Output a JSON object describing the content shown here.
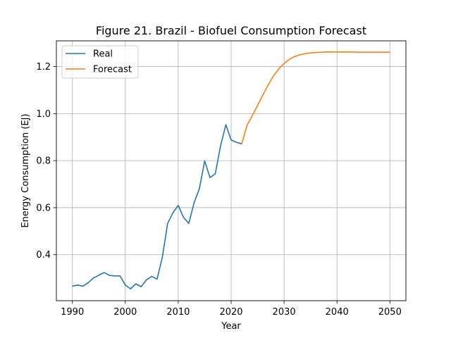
{
  "chart_data": {
    "type": "line",
    "title": "Figure 21. Brazil - Biofuel Consumption Forecast",
    "xlabel": "Year",
    "ylabel": "Energy Consumption (EJ)",
    "xlim": [
      1986.98,
      2053.02
    ],
    "ylim": [
      0.2045,
      1.3095
    ],
    "xticks": [
      1990,
      2000,
      2010,
      2020,
      2030,
      2040,
      2050
    ],
    "yticks": [
      0.4,
      0.6,
      0.8,
      1.0,
      1.2
    ],
    "ytick_labels": [
      "0.4",
      "0.6",
      "0.8",
      "1.0",
      "1.2"
    ],
    "grid": true,
    "legend_position": "upper-left",
    "series": [
      {
        "name": "Real",
        "color": "#1f77b4",
        "x": [
          1990,
          1991,
          1992,
          1993,
          1994,
          1995,
          1996,
          1997,
          1998,
          1999,
          2000,
          2001,
          2002,
          2003,
          2004,
          2005,
          2006,
          2007,
          2008,
          2009,
          2010,
          2011,
          2012,
          2013,
          2014,
          2015,
          2016,
          2017,
          2018,
          2019,
          2020,
          2021,
          2022
        ],
        "values": [
          0.266,
          0.271,
          0.266,
          0.281,
          0.301,
          0.313,
          0.324,
          0.312,
          0.31,
          0.31,
          0.271,
          0.255,
          0.276,
          0.264,
          0.293,
          0.308,
          0.296,
          0.389,
          0.533,
          0.578,
          0.61,
          0.559,
          0.533,
          0.621,
          0.681,
          0.799,
          0.728,
          0.744,
          0.863,
          0.953,
          0.888,
          0.878,
          0.871
        ]
      },
      {
        "name": "Forecast",
        "color": "#ff7f0e",
        "x": [
          2022,
          2023,
          2024,
          2025,
          2026,
          2027,
          2028,
          2029,
          2030,
          2031,
          2032,
          2033,
          2034,
          2035,
          2036,
          2037,
          2038,
          2039,
          2040,
          2041,
          2042,
          2043,
          2044,
          2045,
          2046,
          2047,
          2048,
          2049,
          2050
        ],
        "values": [
          0.871,
          0.95,
          0.991,
          1.035,
          1.079,
          1.122,
          1.16,
          1.19,
          1.213,
          1.231,
          1.243,
          1.25,
          1.255,
          1.258,
          1.26,
          1.261,
          1.262,
          1.262,
          1.262,
          1.262,
          1.262,
          1.262,
          1.261,
          1.261,
          1.261,
          1.261,
          1.261,
          1.261,
          1.261
        ]
      }
    ]
  }
}
